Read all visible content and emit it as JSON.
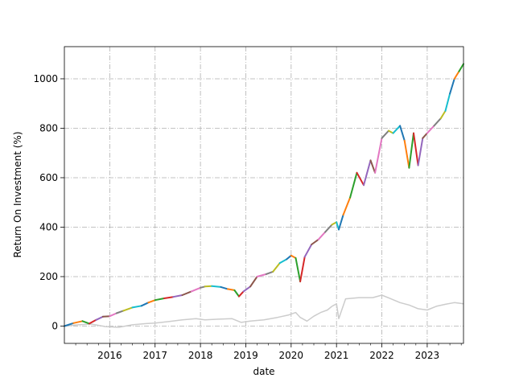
{
  "chart_data": {
    "type": "line",
    "xlabel": "date",
    "ylabel": "Return On Investment (%)",
    "xlim": [
      2015.0,
      2023.8
    ],
    "ylim": [
      -70,
      1130
    ],
    "x_ticks": [
      2016,
      2017,
      2018,
      2019,
      2020,
      2021,
      2022,
      2023
    ],
    "x_tick_labels": [
      "2016",
      "2017",
      "2018",
      "2019",
      "2020",
      "2021",
      "2022",
      "2023"
    ],
    "y_ticks": [
      0,
      200,
      400,
      600,
      800,
      1000
    ],
    "y_tick_labels": [
      "0",
      "200",
      "400",
      "600",
      "800",
      "1000"
    ],
    "grid": true,
    "grid_style": "dash-dot",
    "segment_colors": [
      "#1f77b4",
      "#ff7f0e",
      "#2ca02c",
      "#d62728",
      "#9467bd",
      "#8c564b",
      "#e377c2",
      "#7f7f7f",
      "#bcbd22",
      "#17becf"
    ],
    "benchmark_color": "#cccccc",
    "series": [
      {
        "style": "multicolor",
        "x": [
          2015.0,
          2015.2,
          2015.4,
          2015.55,
          2015.7,
          2015.85,
          2016.0,
          2016.15,
          2016.3,
          2016.5,
          2016.7,
          2016.85,
          2017.0,
          2017.2,
          2017.4,
          2017.6,
          2017.8,
          2018.0,
          2018.1,
          2018.25,
          2018.45,
          2018.6,
          2018.75,
          2018.85,
          2018.95,
          2019.1,
          2019.25,
          2019.45,
          2019.6,
          2019.75,
          2019.9,
          2020.0,
          2020.1,
          2020.2,
          2020.3,
          2020.45,
          2020.6,
          2020.75,
          2020.9,
          2021.0,
          2021.05,
          2021.15,
          2021.3,
          2021.45,
          2021.6,
          2021.75,
          2021.85,
          2022.0,
          2022.15,
          2022.25,
          2022.4,
          2022.5,
          2022.6,
          2022.7,
          2022.8,
          2022.9,
          2023.0,
          2023.15,
          2023.3,
          2023.4,
          2023.5,
          2023.6,
          2023.7,
          2023.8
        ],
        "y": [
          0,
          12,
          20,
          10,
          25,
          38,
          40,
          52,
          62,
          75,
          82,
          95,
          105,
          112,
          118,
          125,
          140,
          155,
          160,
          162,
          158,
          150,
          145,
          120,
          140,
          160,
          200,
          210,
          220,
          255,
          270,
          285,
          275,
          180,
          280,
          330,
          350,
          380,
          410,
          420,
          390,
          450,
          520,
          620,
          570,
          670,
          620,
          760,
          790,
          780,
          810,
          750,
          640,
          780,
          650,
          760,
          780,
          810,
          840,
          870,
          940,
          1000,
          1030,
          1060
        ]
      },
      {
        "style": "benchmark",
        "x": [
          2015.0,
          2015.3,
          2015.6,
          2015.9,
          2016.2,
          2016.5,
          2016.8,
          2017.0,
          2017.3,
          2017.6,
          2017.9,
          2018.1,
          2018.4,
          2018.7,
          2018.9,
          2019.1,
          2019.4,
          2019.7,
          2019.95,
          2020.1,
          2020.2,
          2020.35,
          2020.5,
          2020.65,
          2020.8,
          2020.9,
          2021.0,
          2021.05,
          2021.2,
          2021.5,
          2021.8,
          2022.0,
          2022.2,
          2022.4,
          2022.6,
          2022.8,
          2023.0,
          2023.2,
          2023.4,
          2023.6,
          2023.8
        ],
        "y": [
          0,
          5,
          8,
          -2,
          -5,
          5,
          10,
          12,
          18,
          25,
          30,
          25,
          28,
          30,
          15,
          20,
          25,
          35,
          45,
          55,
          35,
          20,
          40,
          55,
          65,
          80,
          90,
          30,
          110,
          115,
          115,
          125,
          110,
          95,
          85,
          70,
          65,
          80,
          88,
          95,
          90
        ]
      }
    ]
  }
}
